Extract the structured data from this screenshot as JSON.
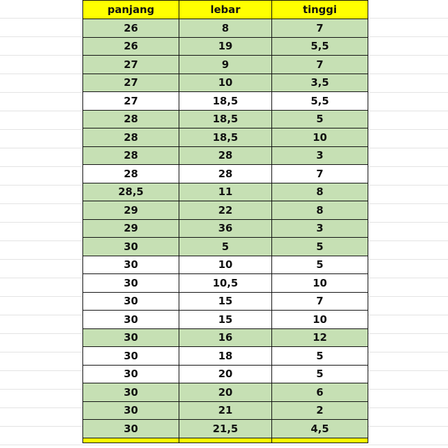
{
  "colors": {
    "header": "#ffff00",
    "highlight": "#c6e0b4",
    "plain": "#ffffff"
  },
  "table": {
    "headers": [
      "panjang",
      "lebar",
      "tinggi"
    ],
    "rows": [
      {
        "cells": [
          "26",
          "8",
          "7"
        ],
        "highlighted": true
      },
      {
        "cells": [
          "26",
          "19",
          "5,5"
        ],
        "highlighted": true
      },
      {
        "cells": [
          "27",
          "9",
          "7"
        ],
        "highlighted": true
      },
      {
        "cells": [
          "27",
          "10",
          "3,5"
        ],
        "highlighted": true
      },
      {
        "cells": [
          "27",
          "18,5",
          "5,5"
        ],
        "highlighted": false
      },
      {
        "cells": [
          "28",
          "18,5",
          "5"
        ],
        "highlighted": true
      },
      {
        "cells": [
          "28",
          "18,5",
          "10"
        ],
        "highlighted": true
      },
      {
        "cells": [
          "28",
          "28",
          "3"
        ],
        "highlighted": true
      },
      {
        "cells": [
          "28",
          "28",
          "7"
        ],
        "highlighted": false
      },
      {
        "cells": [
          "28,5",
          "11",
          "8"
        ],
        "highlighted": true
      },
      {
        "cells": [
          "29",
          "22",
          "8"
        ],
        "highlighted": true
      },
      {
        "cells": [
          "29",
          "36",
          "3"
        ],
        "highlighted": true
      },
      {
        "cells": [
          "30",
          "5",
          "5"
        ],
        "highlighted": true
      },
      {
        "cells": [
          "30",
          "10",
          "5"
        ],
        "highlighted": false
      },
      {
        "cells": [
          "30",
          "10,5",
          "10"
        ],
        "highlighted": false
      },
      {
        "cells": [
          "30",
          "15",
          "7"
        ],
        "highlighted": false
      },
      {
        "cells": [
          "30",
          "15",
          "10"
        ],
        "highlighted": false
      },
      {
        "cells": [
          "30",
          "16",
          "12"
        ],
        "highlighted": true
      },
      {
        "cells": [
          "30",
          "18",
          "5"
        ],
        "highlighted": false
      },
      {
        "cells": [
          "30",
          "20",
          "5"
        ],
        "highlighted": false
      },
      {
        "cells": [
          "30",
          "20",
          "6"
        ],
        "highlighted": true
      },
      {
        "cells": [
          "30",
          "21",
          "2"
        ],
        "highlighted": true
      },
      {
        "cells": [
          "30",
          "21,5",
          "4,5"
        ],
        "highlighted": true
      }
    ]
  }
}
